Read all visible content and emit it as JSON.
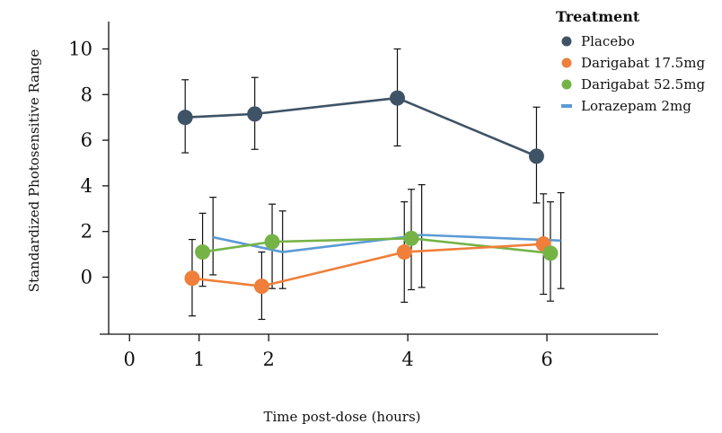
{
  "chart_data": {
    "type": "line",
    "title": "",
    "xlabel": "Time post-dose (hours)",
    "ylabel": "Standardized Photosensitive Range",
    "xlim": [
      -0.3,
      7.6
    ],
    "ylim": [
      -2.5,
      11.2
    ],
    "x_ticks": [
      0,
      1,
      2,
      4,
      6
    ],
    "y_ticks": [
      0,
      2,
      4,
      6,
      8,
      10
    ],
    "legend_title": "Treatment",
    "legend_position": "top-right",
    "series": [
      {
        "name": "Placebo",
        "color": "#3f5366",
        "marker": "circle",
        "x": [
          0.8,
          1.8,
          3.85,
          5.85
        ],
        "y": [
          7.0,
          7.15,
          7.85,
          5.3
        ],
        "err_low": [
          5.45,
          5.6,
          5.75,
          3.25
        ],
        "err_high": [
          8.65,
          8.75,
          10.0,
          7.45
        ]
      },
      {
        "name": "Darigabat 17.5mg",
        "color": "#ef7f3a",
        "marker": "circle",
        "x": [
          0.9,
          1.9,
          3.95,
          5.95
        ],
        "y": [
          -0.05,
          -0.4,
          1.1,
          1.45
        ],
        "err_low": [
          -1.7,
          -1.85,
          -1.1,
          -0.75
        ],
        "err_high": [
          1.65,
          1.1,
          3.3,
          3.65
        ]
      },
      {
        "name": "Darigabat 52.5mg",
        "color": "#75b347",
        "marker": "circle",
        "x": [
          1.05,
          2.05,
          4.05,
          6.05
        ],
        "y": [
          1.1,
          1.55,
          1.7,
          1.05
        ],
        "err_low": [
          -0.4,
          -0.5,
          -0.55,
          -1.05
        ],
        "err_high": [
          2.8,
          3.2,
          3.85,
          3.3
        ]
      },
      {
        "name": "Lorazepam 2mg",
        "color": "#5b9bd5",
        "marker": "none",
        "x": [
          1.2,
          2.2,
          4.2,
          6.2
        ],
        "y": [
          1.75,
          1.1,
          1.85,
          1.6
        ],
        "err_low": [
          0.1,
          -0.5,
          -0.45,
          -0.5
        ],
        "err_high": [
          3.5,
          2.9,
          4.05,
          3.7
        ]
      }
    ]
  }
}
